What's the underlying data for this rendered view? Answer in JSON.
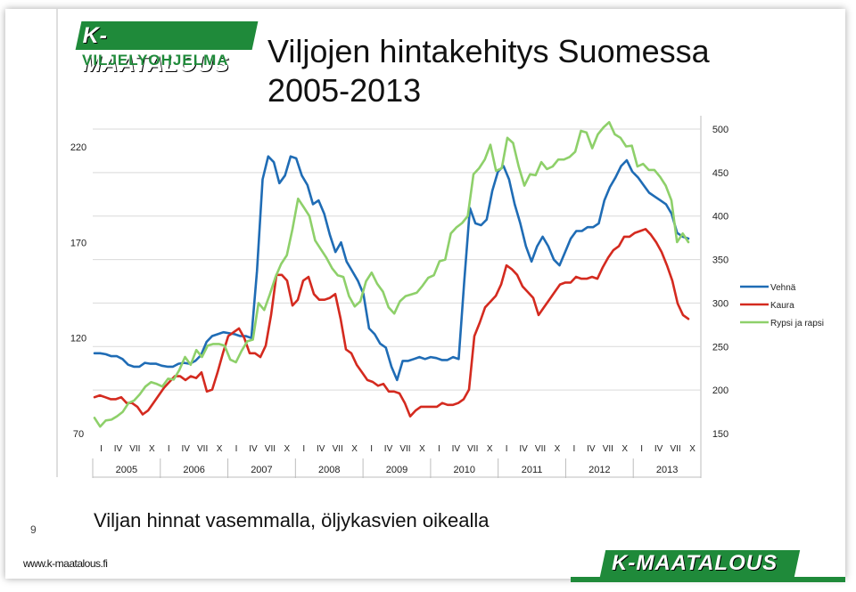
{
  "slide": {
    "logo_top": "K-MAATALOUS",
    "logo_top_sub": "VILJELYOHJELMA",
    "title_line1": "Viljojen hintakehitys Suomessa",
    "title_line2": "2005-2013",
    "subtitle": "Viljan hinnat vasemmalla, öljykasvien oikealla",
    "page_number": "9",
    "url": "www.k-maatalous.fi",
    "logo_bottom": "K-MAATALOUS"
  },
  "chart_data": {
    "type": "line",
    "left_axis": {
      "ylim": [
        70,
        220
      ],
      "ticks": [
        "70",
        "120",
        "170",
        "220"
      ]
    },
    "right_axis": {
      "ylim": [
        150,
        500
      ],
      "ticks": [
        "150",
        "200",
        "250",
        "300",
        "350",
        "400",
        "450",
        "500"
      ]
    },
    "x_minor_labels": [
      "I",
      "IV",
      "VII",
      "X",
      "I",
      "IV",
      "VII",
      "X",
      "I",
      "IV",
      "VII",
      "X",
      "I",
      "IV",
      "VII",
      "X",
      "I",
      "IV",
      "VII",
      "X",
      "I",
      "IV",
      "VII",
      "X",
      "I",
      "IV",
      "VII",
      "X",
      "I",
      "IV",
      "VII",
      "X",
      "I",
      "IV",
      "VII",
      "X"
    ],
    "years": [
      "2005",
      "2006",
      "2007",
      "2008",
      "2009",
      "2010",
      "2011",
      "2012",
      "2013"
    ],
    "series": [
      {
        "name": "Vehnä",
        "axis": "left",
        "color": "#1f6cb5",
        "values": [
          112,
          112,
          111.5,
          110.5,
          110.5,
          109,
          106,
          105,
          105,
          107,
          106.5,
          106.5,
          105.5,
          105,
          105,
          106.5,
          107,
          106.5,
          108,
          111,
          118,
          121,
          122,
          123,
          122.5,
          122,
          121,
          121,
          120,
          155,
          203,
          215,
          212,
          201,
          205,
          215,
          214,
          205,
          200,
          190,
          192,
          185,
          174,
          165,
          170,
          160,
          155,
          150,
          143,
          125,
          122,
          117,
          115,
          105,
          98,
          108,
          108,
          109,
          110,
          109,
          110,
          109.5,
          108.5,
          108.5,
          110,
          109,
          150,
          188,
          180,
          179,
          182,
          197,
          207,
          210,
          203,
          190,
          180,
          168,
          160,
          168,
          173,
          168,
          161,
          158,
          165,
          172,
          176,
          176,
          178,
          178,
          180,
          192,
          199,
          204,
          210,
          213,
          207,
          204,
          200,
          196,
          194,
          192,
          190,
          185,
          175,
          173,
          172
        ]
      },
      {
        "name": "Kaura",
        "axis": "left",
        "color": "#d42a1f",
        "values": [
          89,
          90,
          89,
          88,
          88,
          89,
          86,
          86,
          84,
          80,
          82,
          86,
          90,
          94,
          97,
          100,
          100,
          98,
          100,
          99,
          102,
          92,
          93,
          102,
          112,
          121,
          123,
          125,
          120,
          112,
          112,
          110,
          116,
          132,
          153,
          153,
          150,
          137,
          140,
          150,
          152,
          143,
          140,
          140,
          141,
          143,
          130,
          114,
          112,
          106,
          102,
          98,
          97,
          95,
          96,
          92,
          92,
          91,
          86,
          79,
          82,
          84,
          84,
          84,
          84,
          86,
          85,
          85,
          86,
          88,
          93,
          121,
          128,
          136,
          139,
          142,
          148,
          158,
          156,
          153,
          147,
          144,
          141,
          132,
          136,
          140,
          144,
          148,
          149,
          149,
          152,
          151,
          151,
          152,
          151,
          157,
          162,
          166,
          168,
          173,
          173,
          175,
          176,
          177,
          174,
          170,
          165,
          158,
          150,
          138,
          132,
          130
        ]
      },
      {
        "name": "Rypsi ja rapsi",
        "axis": "right",
        "color": "#8ed06a",
        "values": [
          168,
          158,
          165,
          166,
          170,
          175,
          185,
          188,
          195,
          204,
          209,
          207,
          204,
          213,
          212,
          223,
          238,
          229,
          246,
          238,
          251,
          253,
          253,
          251,
          235,
          232,
          245,
          256,
          258,
          300,
          292,
          310,
          330,
          345,
          355,
          385,
          420,
          410,
          400,
          372,
          362,
          352,
          340,
          332,
          330,
          308,
          296,
          302,
          325,
          335,
          322,
          313,
          295,
          288,
          302,
          308,
          310,
          312,
          320,
          329,
          332,
          348,
          350,
          380,
          387,
          392,
          400,
          448,
          455,
          465,
          482,
          452,
          455,
          490,
          484,
          457,
          435,
          448,
          447,
          462,
          454,
          457,
          465,
          465,
          468,
          474,
          498,
          496,
          478,
          494,
          502,
          508,
          494,
          490,
          480,
          481,
          457,
          460,
          453,
          453,
          445,
          435,
          418,
          370,
          380,
          370
        ]
      }
    ],
    "grid": true,
    "legend": "right"
  }
}
